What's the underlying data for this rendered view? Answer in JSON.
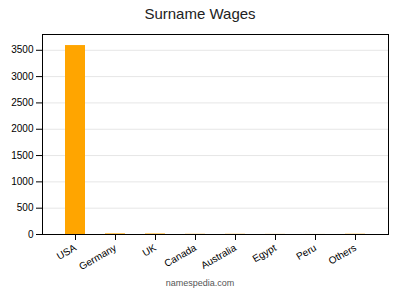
{
  "chart_data": {
    "type": "bar",
    "title": "Surname Wages",
    "categories": [
      "USA",
      "Germany",
      "UK",
      "Canada",
      "Australia",
      "Egypt",
      "Peru",
      "Others"
    ],
    "values": [
      3590,
      12,
      10,
      4,
      4,
      2,
      1,
      5
    ],
    "color": "#FFA500",
    "ylim": [
      0,
      3800
    ],
    "yticks": [
      0,
      500,
      1000,
      1500,
      2000,
      2500,
      3000,
      3500
    ],
    "grid": true,
    "annotations": [
      "namespedia.com"
    ]
  }
}
